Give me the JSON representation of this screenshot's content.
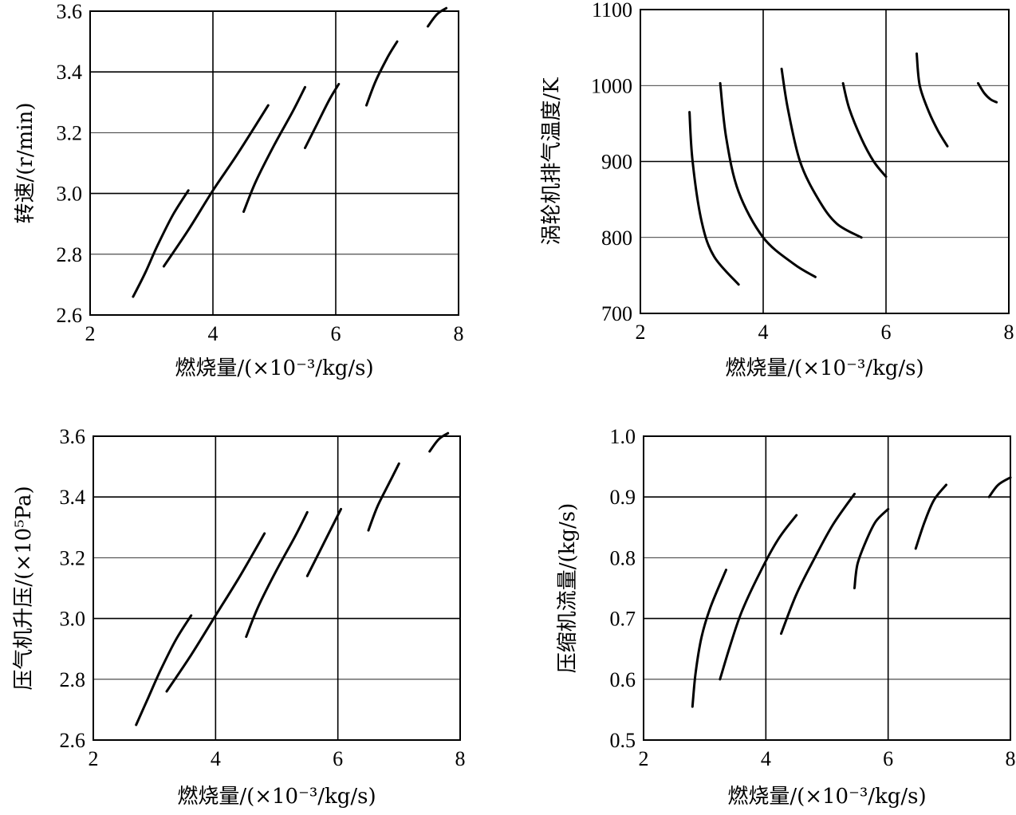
{
  "chart_data": [
    {
      "type": "line",
      "xlabel": "燃烧量/(×10⁻³/kg/s)",
      "ylabel": "转速/(r/min)",
      "xlim": [
        2,
        8
      ],
      "ylim": [
        2.6,
        3.6
      ],
      "x_ticks": [
        "2",
        "4",
        "6",
        "8"
      ],
      "y_ticks": [
        "2.6",
        "2.8",
        "3.0",
        "3.2",
        "3.4",
        "3.6"
      ],
      "series": [
        {
          "x": [
            2.7,
            2.9,
            3.1,
            3.35,
            3.6
          ],
          "y": [
            2.66,
            2.74,
            2.83,
            2.93,
            3.01
          ]
        },
        {
          "x": [
            3.2,
            3.6,
            4.0,
            4.4,
            4.9
          ],
          "y": [
            2.76,
            2.88,
            3.01,
            3.13,
            3.29
          ]
        },
        {
          "x": [
            4.5,
            4.7,
            5.0,
            5.3,
            5.5
          ],
          "y": [
            2.94,
            3.04,
            3.16,
            3.27,
            3.35
          ]
        },
        {
          "x": [
            5.5,
            5.7,
            5.9,
            6.05
          ],
          "y": [
            3.15,
            3.23,
            3.31,
            3.36
          ]
        },
        {
          "x": [
            6.5,
            6.65,
            6.85,
            7.0
          ],
          "y": [
            3.29,
            3.37,
            3.45,
            3.5
          ]
        },
        {
          "x": [
            7.5,
            7.65,
            7.8
          ],
          "y": [
            3.55,
            3.59,
            3.61
          ]
        }
      ]
    },
    {
      "type": "line",
      "xlabel": "燃烧量/(×10⁻³/kg/s)",
      "ylabel": "涡轮机排气温度/K",
      "xlim": [
        2,
        8
      ],
      "ylim": [
        700,
        1100
      ],
      "x_ticks": [
        "2",
        "4",
        "6",
        "8"
      ],
      "y_ticks": [
        "700",
        "800",
        "900",
        "1000",
        "1100"
      ],
      "series": [
        {
          "x": [
            2.8,
            2.85,
            3.0,
            3.2,
            3.6
          ],
          "y": [
            965,
            900,
            820,
            775,
            738
          ]
        },
        {
          "x": [
            3.3,
            3.4,
            3.6,
            4.0,
            4.5,
            4.85
          ],
          "y": [
            1003,
            930,
            860,
            800,
            765,
            748
          ]
        },
        {
          "x": [
            4.3,
            4.4,
            4.6,
            4.9,
            5.2,
            5.6
          ],
          "y": [
            1022,
            970,
            900,
            850,
            818,
            800
          ]
        },
        {
          "x": [
            5.3,
            5.4,
            5.6,
            5.8,
            6.0
          ],
          "y": [
            1003,
            970,
            930,
            900,
            880
          ]
        },
        {
          "x": [
            6.5,
            6.55,
            6.7,
            6.85,
            7.0
          ],
          "y": [
            1042,
            1000,
            965,
            940,
            920
          ]
        },
        {
          "x": [
            7.5,
            7.6,
            7.7,
            7.8
          ],
          "y": [
            1003,
            990,
            982,
            978
          ]
        }
      ]
    },
    {
      "type": "line",
      "xlabel": "燃烧量/(×10⁻³/kg/s)",
      "ylabel": "压气机升压/(×10⁵Pa)",
      "xlim": [
        2,
        8
      ],
      "ylim": [
        2.6,
        3.6
      ],
      "x_ticks": [
        "2",
        "4",
        "6",
        "8"
      ],
      "y_ticks": [
        "2.6",
        "2.8",
        "3.0",
        "3.2",
        "3.4",
        "3.6"
      ],
      "series": [
        {
          "x": [
            2.7,
            2.9,
            3.1,
            3.35,
            3.6
          ],
          "y": [
            2.65,
            2.74,
            2.83,
            2.93,
            3.01
          ]
        },
        {
          "x": [
            3.2,
            3.6,
            4.0,
            4.4,
            4.8
          ],
          "y": [
            2.76,
            2.88,
            3.01,
            3.14,
            3.28
          ]
        },
        {
          "x": [
            4.5,
            4.7,
            5.0,
            5.3,
            5.5
          ],
          "y": [
            2.94,
            3.04,
            3.16,
            3.27,
            3.35
          ]
        },
        {
          "x": [
            5.5,
            5.7,
            5.9,
            6.05
          ],
          "y": [
            3.14,
            3.22,
            3.3,
            3.36
          ]
        },
        {
          "x": [
            6.5,
            6.65,
            6.85,
            7.0
          ],
          "y": [
            3.29,
            3.37,
            3.45,
            3.51
          ]
        },
        {
          "x": [
            7.5,
            7.65,
            7.8
          ],
          "y": [
            3.55,
            3.59,
            3.61
          ]
        }
      ]
    },
    {
      "type": "line",
      "xlabel": "燃烧量/(×10⁻³/kg/s)",
      "ylabel": "压缩机流量/(kg/s)",
      "xlim": [
        2,
        8
      ],
      "ylim": [
        0.5,
        1.0
      ],
      "x_ticks": [
        "2",
        "4",
        "6",
        "8"
      ],
      "y_ticks": [
        "0.5",
        "0.6",
        "0.7",
        "0.8",
        "0.9",
        "1.0"
      ],
      "series": [
        {
          "x": [
            2.8,
            2.85,
            2.95,
            3.1,
            3.35
          ],
          "y": [
            0.555,
            0.61,
            0.67,
            0.72,
            0.78
          ]
        },
        {
          "x": [
            3.25,
            3.4,
            3.6,
            3.9,
            4.2,
            4.5
          ],
          "y": [
            0.6,
            0.65,
            0.71,
            0.775,
            0.83,
            0.87
          ]
        },
        {
          "x": [
            4.25,
            4.5,
            4.8,
            5.1,
            5.45
          ],
          "y": [
            0.675,
            0.74,
            0.8,
            0.855,
            0.905
          ]
        },
        {
          "x": [
            5.45,
            5.5,
            5.65,
            5.8,
            6.0
          ],
          "y": [
            0.75,
            0.79,
            0.83,
            0.86,
            0.88
          ]
        },
        {
          "x": [
            6.45,
            6.6,
            6.75,
            6.95
          ],
          "y": [
            0.815,
            0.86,
            0.895,
            0.92
          ]
        },
        {
          "x": [
            7.65,
            7.8,
            8.0
          ],
          "y": [
            0.9,
            0.92,
            0.932
          ]
        }
      ]
    }
  ]
}
